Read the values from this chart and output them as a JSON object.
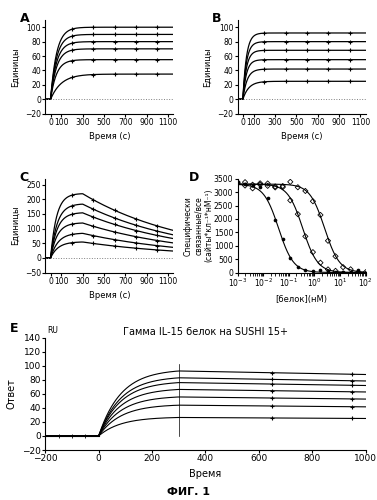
{
  "panel_A": {
    "label": "A",
    "xlabel": "Время (с)",
    "ylabel": "Единицы",
    "xlim": [
      -50,
      1150
    ],
    "ylim": [
      -20,
      110
    ],
    "xticks": [
      0,
      100,
      300,
      500,
      700,
      900,
      1100
    ],
    "yticks": [
      -20,
      0,
      20,
      40,
      60,
      80,
      100
    ],
    "dotted_y": 0,
    "curves": [
      {
        "plateau": 100,
        "rate": 0.018,
        "t0": 0
      },
      {
        "plateau": 90,
        "rate": 0.018,
        "t0": 0
      },
      {
        "plateau": 80,
        "rate": 0.018,
        "t0": 0
      },
      {
        "plateau": 70,
        "rate": 0.018,
        "t0": 0
      },
      {
        "plateau": 55,
        "rate": 0.018,
        "t0": 0
      },
      {
        "plateau": 35,
        "rate": 0.01,
        "t0": 0
      }
    ],
    "marker_times": [
      200,
      400,
      600,
      800,
      1000
    ]
  },
  "panel_B": {
    "label": "B",
    "xlabel": "Время (с)",
    "ylabel": "Единицы",
    "xlim": [
      -50,
      1150
    ],
    "ylim": [
      -20,
      110
    ],
    "xticks": [
      0,
      100,
      300,
      500,
      700,
      900,
      1100
    ],
    "yticks": [
      -20,
      0,
      20,
      40,
      60,
      80,
      100
    ],
    "dotted_y": 0,
    "curves": [
      {
        "plateau": 92,
        "rate": 0.03,
        "t0": 0
      },
      {
        "plateau": 80,
        "rate": 0.03,
        "t0": 0
      },
      {
        "plateau": 68,
        "rate": 0.03,
        "t0": 0
      },
      {
        "plateau": 55,
        "rate": 0.03,
        "t0": 0
      },
      {
        "plateau": 42,
        "rate": 0.025,
        "t0": 0
      },
      {
        "plateau": 25,
        "rate": 0.018,
        "t0": 0
      }
    ],
    "marker_times": [
      200,
      400,
      600,
      800,
      1000
    ]
  },
  "panel_C": {
    "label": "C",
    "xlabel": "Время (с)",
    "ylabel": "Единицы",
    "xlim": [
      -50,
      1150
    ],
    "ylim": [
      -50,
      270
    ],
    "xticks": [
      0,
      100,
      300,
      500,
      700,
      900,
      1100
    ],
    "yticks": [
      -50,
      0,
      50,
      100,
      150,
      200,
      250
    ],
    "dotted_y": 0,
    "curves": [
      {
        "peak": 220,
        "rate_on": 0.018,
        "rate_off": 0.001,
        "t0": 0,
        "t_off": 300
      },
      {
        "peak": 185,
        "rate_on": 0.016,
        "rate_off": 0.001,
        "t0": 0,
        "t_off": 300
      },
      {
        "peak": 155,
        "rate_on": 0.016,
        "rate_off": 0.001,
        "t0": 0,
        "t_off": 300
      },
      {
        "peak": 120,
        "rate_on": 0.016,
        "rate_off": 0.001,
        "t0": 0,
        "t_off": 300
      },
      {
        "peak": 85,
        "rate_on": 0.014,
        "rate_off": 0.001,
        "t0": 0,
        "t_off": 300
      },
      {
        "peak": 55,
        "rate_on": 0.014,
        "rate_off": 0.001,
        "t0": 0,
        "t_off": 300
      }
    ],
    "marker_times": [
      200,
      400,
      600,
      800,
      1000
    ]
  },
  "panel_D": {
    "label": "D",
    "xlabel": "[белок](нМ)",
    "ylabel": "Специфически\nсвязанные/все\n(сайты*кл⁻¹*нМ⁻¹)",
    "ylim": [
      0,
      3500
    ],
    "yticks": [
      0,
      500,
      1000,
      1500,
      2000,
      2500,
      3000,
      3500
    ],
    "curves": [
      {
        "IC50": 0.04,
        "Bmax": 3300,
        "n": 1.5,
        "marker": "filled_circle"
      },
      {
        "IC50": 0.35,
        "Bmax": 3300,
        "n": 1.5,
        "marker": "open_diamond"
      },
      {
        "IC50": 2.5,
        "Bmax": 3300,
        "n": 1.5,
        "marker": "open_diamond"
      }
    ]
  },
  "panel_E": {
    "label": "E",
    "title": "Гамма IL-15 белок на SUSHI 15+",
    "ru_label": "RU",
    "xlabel": "Время",
    "ylabel": "Ответ",
    "xlim": [
      -200,
      1000
    ],
    "ylim": [
      -20,
      140
    ],
    "xticks": [
      -200,
      0,
      200,
      400,
      600,
      800,
      1000
    ],
    "yticks": [
      -20,
      0,
      20,
      40,
      60,
      80,
      100,
      120,
      140
    ],
    "t_inject": 0,
    "t_end_inject": 300,
    "curves": [
      {
        "plateau": 95,
        "rate_on": 0.012,
        "rate_off": 8e-05,
        "t0": 0,
        "t_off": 300
      },
      {
        "plateau": 85,
        "rate_on": 0.012,
        "rate_off": 8e-05,
        "t0": 0,
        "t_off": 300
      },
      {
        "plateau": 78,
        "rate_on": 0.012,
        "rate_off": 8e-05,
        "t0": 0,
        "t_off": 300
      },
      {
        "plateau": 68,
        "rate_on": 0.012,
        "rate_off": 8e-05,
        "t0": 0,
        "t_off": 300
      },
      {
        "plateau": 57,
        "rate_on": 0.012,
        "rate_off": 8e-05,
        "t0": 0,
        "t_off": 300
      },
      {
        "plateau": 45,
        "rate_on": 0.012,
        "rate_off": 8e-05,
        "t0": 0,
        "t_off": 300
      },
      {
        "plateau": 27,
        "rate_on": 0.012,
        "rate_off": 8e-05,
        "t0": 0,
        "t_off": 300
      }
    ],
    "marker_times": [
      650,
      950
    ]
  },
  "fig_label": "ФИГ. 1",
  "font_size": 6,
  "label_font_size": 9,
  "title_font_size": 7
}
